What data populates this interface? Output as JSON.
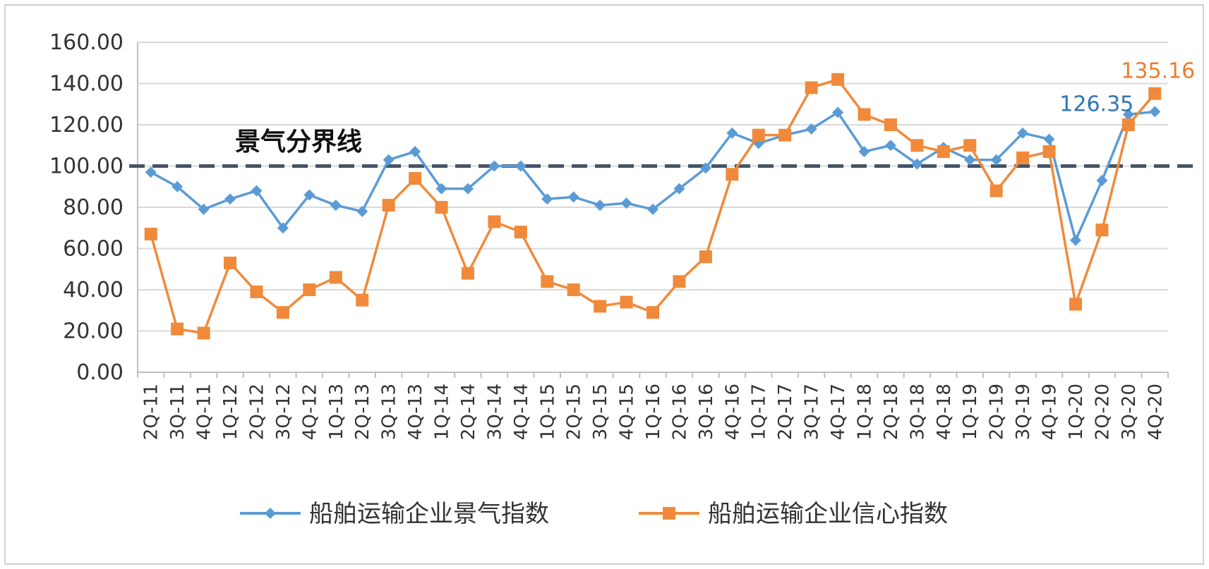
{
  "chart_data": {
    "type": "line",
    "categories": [
      "2Q-11",
      "3Q-11",
      "4Q-11",
      "1Q-12",
      "2Q-12",
      "3Q-12",
      "4Q-12",
      "1Q-13",
      "2Q-13",
      "3Q-13",
      "4Q-13",
      "1Q-14",
      "2Q-14",
      "3Q-14",
      "4Q-14",
      "1Q-15",
      "2Q-15",
      "3Q-15",
      "4Q-15",
      "1Q-16",
      "2Q-16",
      "3Q-16",
      "4Q-16",
      "1Q-17",
      "2Q-17",
      "3Q-17",
      "4Q-17",
      "1Q-18",
      "2Q-18",
      "3Q-18",
      "4Q-18",
      "1Q-19",
      "2Q-19",
      "3Q-19",
      "4Q-19",
      "1Q-20",
      "2Q-20",
      "3Q-20",
      "4Q-20"
    ],
    "series": [
      {
        "name": "船舶运输企业景气指数",
        "color": "#5b9bd5",
        "marker": "diamond",
        "values": [
          97,
          90,
          79,
          84,
          88,
          70,
          86,
          81,
          78,
          103,
          107,
          89,
          89,
          100,
          100,
          84,
          85,
          81,
          82,
          79,
          89,
          99,
          116,
          111,
          115,
          118,
          126,
          107,
          110,
          101,
          109,
          103,
          103,
          116,
          113,
          64,
          93,
          125,
          126.35
        ]
      },
      {
        "name": "船舶运输企业信心指数",
        "color": "#f08a3a",
        "marker": "square",
        "values": [
          67,
          21,
          19,
          53,
          39,
          29,
          40,
          46,
          35,
          81,
          94,
          80,
          48,
          73,
          68,
          44,
          40,
          32,
          34,
          29,
          44,
          56,
          96,
          115,
          115,
          138,
          142,
          125,
          120,
          110,
          107,
          110,
          88,
          104,
          107,
          33,
          69,
          120,
          135.16
        ]
      }
    ],
    "ylim": [
      0,
      160
    ],
    "yticks": [
      "0.00",
      "20.00",
      "40.00",
      "60.00",
      "80.00",
      "100.00",
      "120.00",
      "140.00",
      "160.00"
    ],
    "reference_line": {
      "value": 100,
      "label": "景气分界线",
      "color": "#44546a"
    },
    "data_labels": [
      {
        "series": 0,
        "index": 38,
        "text": "126.35",
        "color": "#2e75b6"
      },
      {
        "series": 1,
        "index": 38,
        "text": "135.16",
        "color": "#ed7d31"
      }
    ],
    "grid": true,
    "legend_position": "bottom"
  }
}
